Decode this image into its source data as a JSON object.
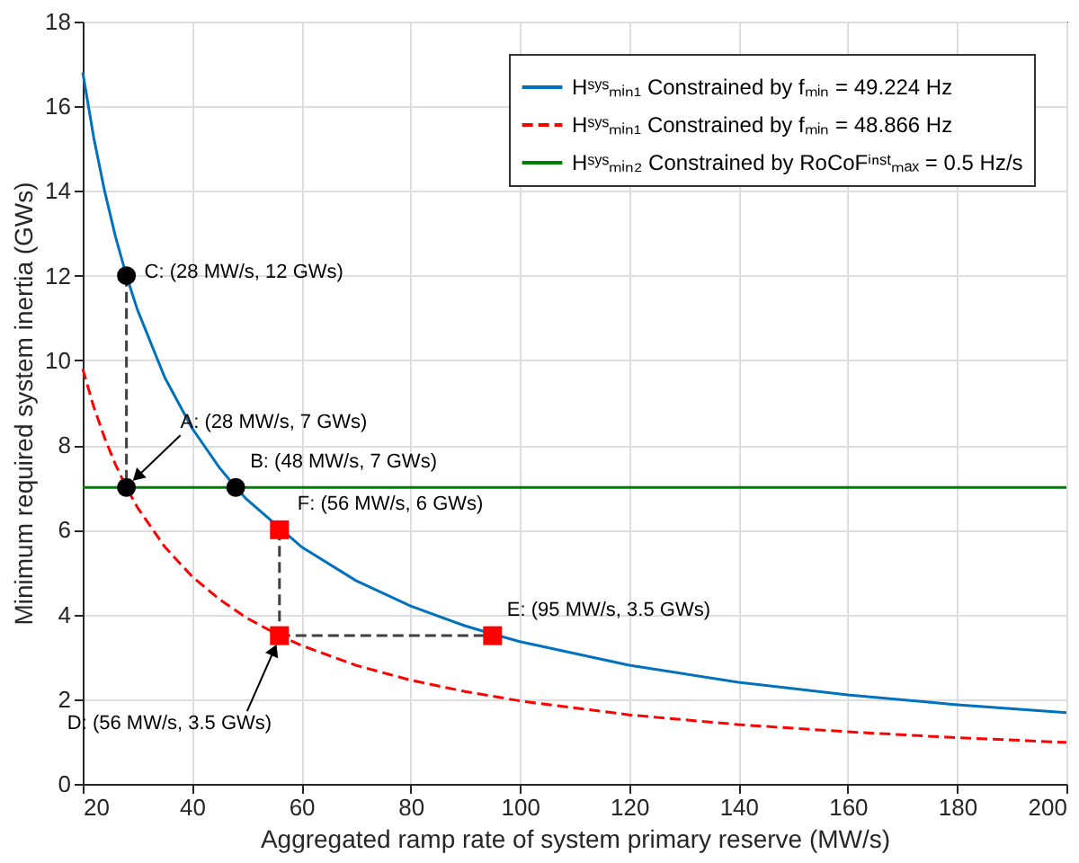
{
  "chart_data": {
    "type": "line",
    "xlabel": "Aggregated ramp rate of system primary reserve (MW/s)",
    "ylabel": "Minimum required system inertia (GWs)",
    "xlim": [
      20,
      200
    ],
    "xticks": [
      20,
      40,
      60,
      80,
      100,
      120,
      140,
      160,
      180,
      200
    ],
    "ylim": [
      0,
      18
    ],
    "yticks": [
      0,
      2,
      4,
      6,
      8,
      10,
      12,
      14,
      16,
      18
    ],
    "grid": true,
    "legend": "top right",
    "series": [
      {
        "name": "Hˢʸˢₘᵢₙ₁ Constrained by fₘᵢₙ = 49.224 Hz",
        "color": "#0072bd",
        "line_style": "solid",
        "x": [
          20,
          22,
          24,
          26,
          28,
          30,
          35,
          40,
          45,
          48,
          50,
          60,
          70,
          80,
          90,
          95,
          100,
          120,
          140,
          160,
          180,
          200
        ],
        "values": [
          16.8,
          15.27,
          14.0,
          12.92,
          12.0,
          11.2,
          9.6,
          8.4,
          7.47,
          7.0,
          6.72,
          5.6,
          4.8,
          4.2,
          3.73,
          3.54,
          3.36,
          2.8,
          2.4,
          2.1,
          1.87,
          1.68
        ]
      },
      {
        "name": "Hˢʸˢₘᵢₙ₁ Constrained by fₘᵢₙ = 48.866 Hz",
        "color": "#ff0000",
        "line_style": "dashed",
        "x": [
          20,
          22,
          24,
          26,
          28,
          30,
          35,
          40,
          45,
          50,
          56,
          60,
          70,
          80,
          90,
          100,
          120,
          140,
          160,
          180,
          200
        ],
        "values": [
          9.8,
          8.91,
          8.17,
          7.54,
          7.0,
          6.53,
          5.6,
          4.9,
          4.36,
          3.92,
          3.5,
          3.27,
          2.8,
          2.45,
          2.18,
          1.96,
          1.63,
          1.4,
          1.23,
          1.09,
          0.98
        ]
      },
      {
        "name": "Hˢʸˢₘᵢₙ₂ Constrained by RoCoFⁱⁿˢᵗₘₐₓ = 0.5 Hz/s",
        "color": "#008000",
        "line_style": "solid",
        "x": [
          20,
          200
        ],
        "values": [
          7,
          7
        ]
      },
      {
        "color": "#404040",
        "line_style": "dashed",
        "x": [
          28,
          28
        ],
        "values": [
          12,
          7
        ]
      },
      {
        "color": "#404040",
        "line_style": "dashed",
        "x": [
          56,
          56
        ],
        "values": [
          6,
          3.5
        ]
      },
      {
        "color": "#404040",
        "line_style": "dashed",
        "x": [
          56,
          95
        ],
        "values": [
          3.5,
          3.5
        ]
      },
      {
        "type": "scatter",
        "marker": "circle",
        "color": "#000000",
        "x": [
          28,
          28,
          48
        ],
        "values": [
          12,
          7,
          7
        ]
      },
      {
        "type": "scatter",
        "marker": "square",
        "color": "#ff0000",
        "x": [
          56,
          56,
          95
        ],
        "values": [
          6,
          3.5,
          3.5
        ]
      }
    ],
    "annotations": [
      {
        "text": "C: (28 MW/s, 12 GWs)",
        "x": 28,
        "y": 12
      },
      {
        "text": "A: (28 MW/s, 7 GWs)",
        "x": 28,
        "y": 7
      },
      {
        "text": "B: (48 MW/s, 7 GWs)",
        "x": 48,
        "y": 7
      },
      {
        "text": "F: (56 MW/s, 6 GWs)",
        "x": 56,
        "y": 6
      },
      {
        "text": "E: (95 MW/s, 3.5 GWs)",
        "x": 95,
        "y": 3.5
      },
      {
        "text": "D: (56 MW/s, 3.5 GWs)",
        "x": 56,
        "y": 3.5
      }
    ]
  }
}
